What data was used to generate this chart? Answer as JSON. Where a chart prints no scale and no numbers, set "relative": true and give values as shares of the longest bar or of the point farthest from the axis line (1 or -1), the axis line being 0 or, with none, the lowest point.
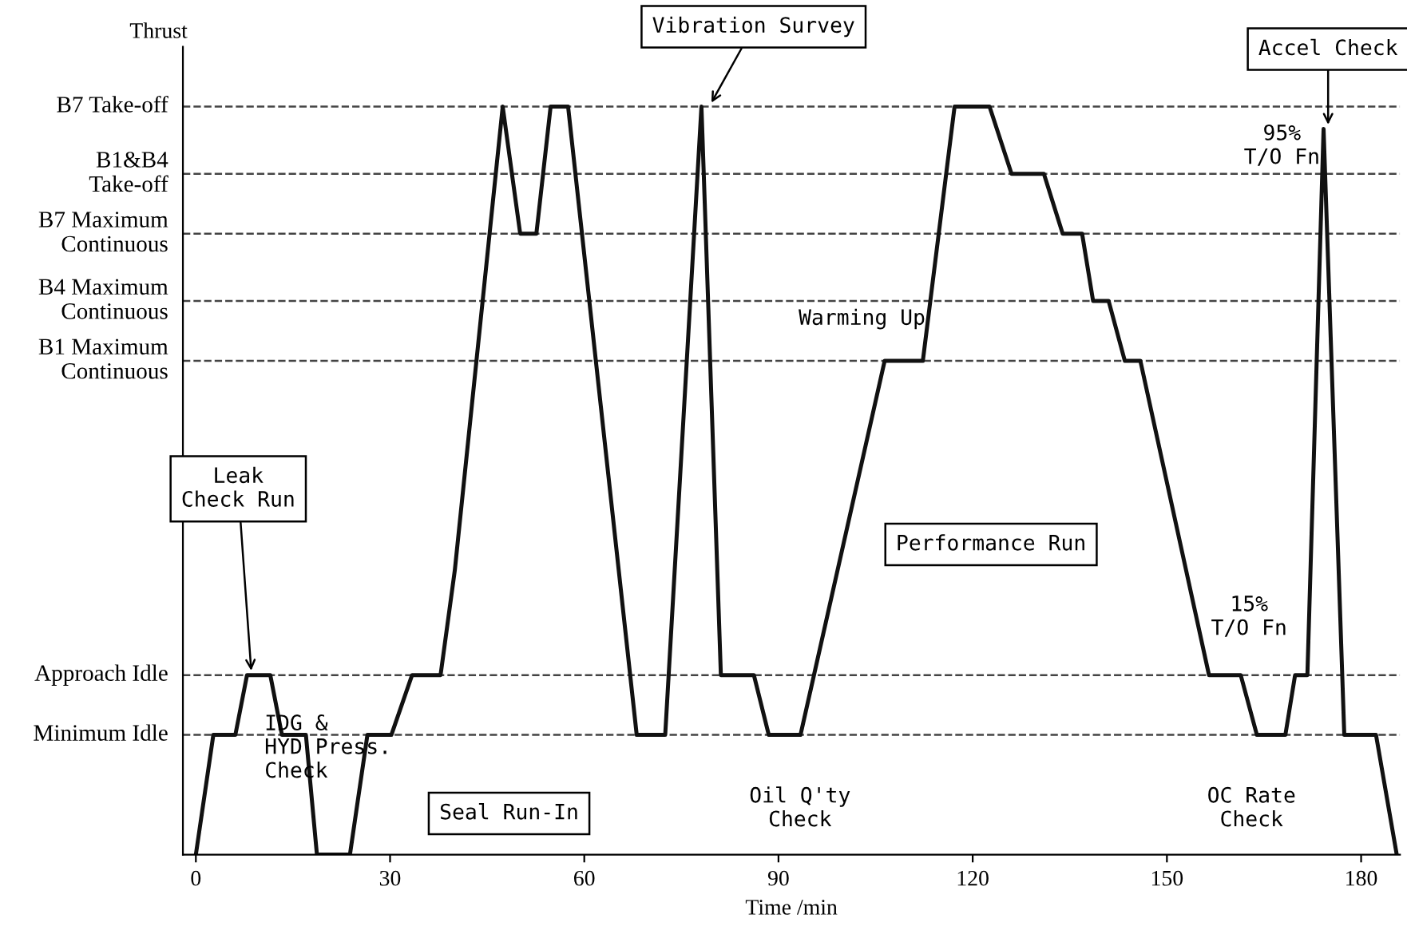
{
  "chart_data": {
    "type": "line",
    "relative": true,
    "xlabel": "Time /min",
    "ylabel": "Thrust",
    "xlim": [
      -2,
      186
    ],
    "xticks": [
      0,
      30,
      60,
      90,
      120,
      150,
      180
    ],
    "grid": false,
    "legend": false,
    "marker": "none",
    "line_style": "solid",
    "ref_lines": [
      {
        "axis": "y",
        "value": 0.16,
        "label": "Minimum Idle",
        "color": "#444444",
        "line_style": "dashed"
      },
      {
        "axis": "y",
        "value": 0.24,
        "label": "Approach Idle",
        "color": "#444444",
        "line_style": "dashed"
      },
      {
        "axis": "y",
        "value": 0.66,
        "label": "B1 Maximum\nContinuous",
        "color": "#444444",
        "line_style": "dashed"
      },
      {
        "axis": "y",
        "value": 0.74,
        "label": "B4 Maximum\nContinuous",
        "color": "#444444",
        "line_style": "dashed"
      },
      {
        "axis": "y",
        "value": 0.83,
        "label": "B7 Maximum\nContinuous",
        "color": "#444444",
        "line_style": "dashed"
      },
      {
        "axis": "y",
        "value": 0.91,
        "label": "B1&B4\nTake-off",
        "color": "#444444",
        "line_style": "dashed"
      },
      {
        "axis": "y",
        "value": 1,
        "label": "B7 Take-off",
        "color": "#444444",
        "line_style": "dashed"
      }
    ],
    "series": [
      {
        "color": "#111111",
        "x": [
          0,
          2.7,
          6.1,
          7.9,
          11.5,
          13.3,
          17.0,
          18.7,
          23.8,
          26.5,
          30.2,
          33.4,
          37.8,
          40.0,
          47.4,
          50.1,
          52.6,
          54.8,
          57.5,
          68.1,
          72.5,
          78.1,
          81.1,
          86.2,
          88.5,
          93.4,
          106.4,
          112.3,
          117.2,
          122.6,
          126.0,
          131.0,
          133.9,
          136.9,
          138.6,
          141.0,
          143.5,
          145.9,
          156.5,
          161.4,
          163.9,
          168.3,
          169.8,
          171.7,
          174.2,
          177.4,
          182.3,
          185.5
        ],
        "values": [
          0,
          0.16,
          0.16,
          0.24,
          0.24,
          0.16,
          0.16,
          0,
          0,
          0.16,
          0.16,
          0.24,
          0.24,
          0.38,
          1,
          0.83,
          0.83,
          1,
          1,
          0.16,
          0.16,
          1,
          0.24,
          0.24,
          0.16,
          0.16,
          0.66,
          0.66,
          1,
          1,
          0.91,
          0.91,
          0.83,
          0.83,
          0.74,
          0.74,
          0.66,
          0.66,
          0.24,
          0.24,
          0.16,
          0.16,
          0.24,
          0.24,
          0.97,
          0.16,
          0.16,
          0
        ]
      }
    ],
    "annotations": [
      {
        "text": "Leak\nCheck Run",
        "x": 8.6,
        "y": 0.24
      },
      "IDG &\nHYD Press.\nCheck",
      "Seal Run-In",
      {
        "text": "Vibration Survey",
        "x": 79.3,
        "y": 1
      },
      "Warming Up",
      "Performance Run",
      "Oil Q'ty\nCheck",
      "15%\nT/O Fn",
      "OC Rate\nCheck",
      "95%\nT/O Fn",
      {
        "text": "Accel Check",
        "x": 174.9,
        "y": 0.97
      }
    ]
  }
}
